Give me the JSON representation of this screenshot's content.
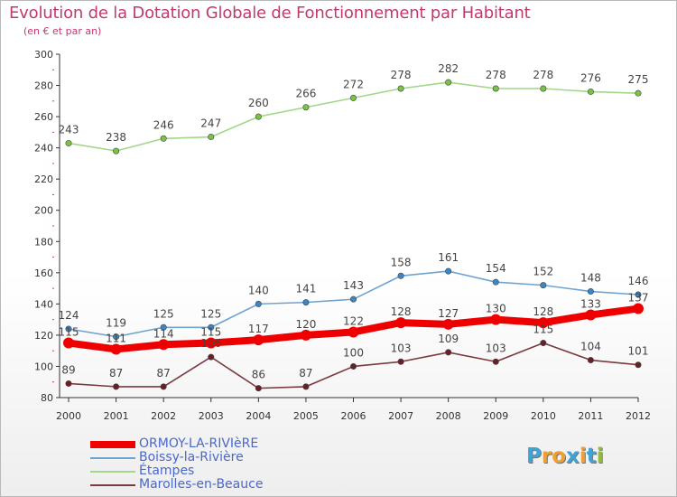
{
  "header": {
    "title": "Evolution de la Dotation Globale de Fonctionnement par Habitant",
    "subtitle": "(en € et par an)"
  },
  "logo": {
    "text": "Proxiti",
    "letters": [
      {
        "ch": "P",
        "color": "#3fa3d6"
      },
      {
        "ch": "r",
        "color": "#f0a030"
      },
      {
        "ch": "o",
        "color": "#f0a030"
      },
      {
        "ch": "x",
        "color": "#3fa3d6"
      },
      {
        "ch": "i",
        "color": "#f0a030"
      },
      {
        "ch": "t",
        "color": "#3fa3d6"
      },
      {
        "ch": "i",
        "color": "#90c030"
      }
    ]
  },
  "chart_data": {
    "type": "line",
    "title": "Evolution de la Dotation Globale de Fonctionnement par Habitant",
    "subtitle": "(en € et par an)",
    "xlabel": "",
    "ylabel": "",
    "x": [
      "2000",
      "2001",
      "2002",
      "2003",
      "2004",
      "2005",
      "2006",
      "2007",
      "2008",
      "2009",
      "2010",
      "2011",
      "2012"
    ],
    "ylim": [
      80,
      300
    ],
    "yticks": [
      "80",
      "100",
      "120",
      "140",
      "160",
      "180",
      "200",
      "220",
      "240",
      "260",
      "280",
      "300"
    ],
    "grid": false,
    "legend_position": "bottom-left",
    "series": [
      {
        "name": "ORMOY-LA-RIVIèRE",
        "color": "#ee0000",
        "dot": "#ee0000",
        "thick": true,
        "values": [
          115,
          111,
          114,
          115,
          117,
          120,
          122,
          128,
          127,
          130,
          128,
          133,
          137
        ]
      },
      {
        "name": "Boissy-la-Rivière",
        "color": "#6fa3cf",
        "dot": "#3a87c8",
        "thick": false,
        "values": [
          124,
          119,
          125,
          125,
          140,
          141,
          143,
          158,
          161,
          154,
          152,
          148,
          146
        ]
      },
      {
        "name": "Étampes",
        "color": "#a2d78a",
        "dot": "#79c444",
        "thick": false,
        "values": [
          243,
          238,
          246,
          247,
          260,
          266,
          272,
          278,
          282,
          278,
          278,
          276,
          275
        ]
      },
      {
        "name": "Marolles-en-Beauce",
        "color": "#7a3a3f",
        "dot": "#6a1e26",
        "thick": false,
        "values": [
          89,
          87,
          87,
          106,
          86,
          87,
          100,
          103,
          109,
          103,
          115,
          104,
          101
        ]
      }
    ],
    "data_labels": [
      [
        "115",
        "111",
        "114",
        "115",
        "117",
        "120",
        "122",
        "128",
        "127",
        "130",
        "128",
        "133",
        "137"
      ],
      [
        "124",
        "119",
        "125",
        "125",
        "140",
        "141",
        "143",
        "158",
        "161",
        "154",
        "152",
        "148",
        "146"
      ],
      [
        "243",
        "238",
        "246",
        "247",
        "260",
        "266",
        "272",
        "278",
        "282",
        "278",
        "278",
        "276",
        "275"
      ],
      [
        "89",
        "87",
        "87",
        "106",
        "86",
        "87",
        "100",
        "103",
        "109",
        "103",
        "115",
        "104",
        "101"
      ]
    ]
  }
}
